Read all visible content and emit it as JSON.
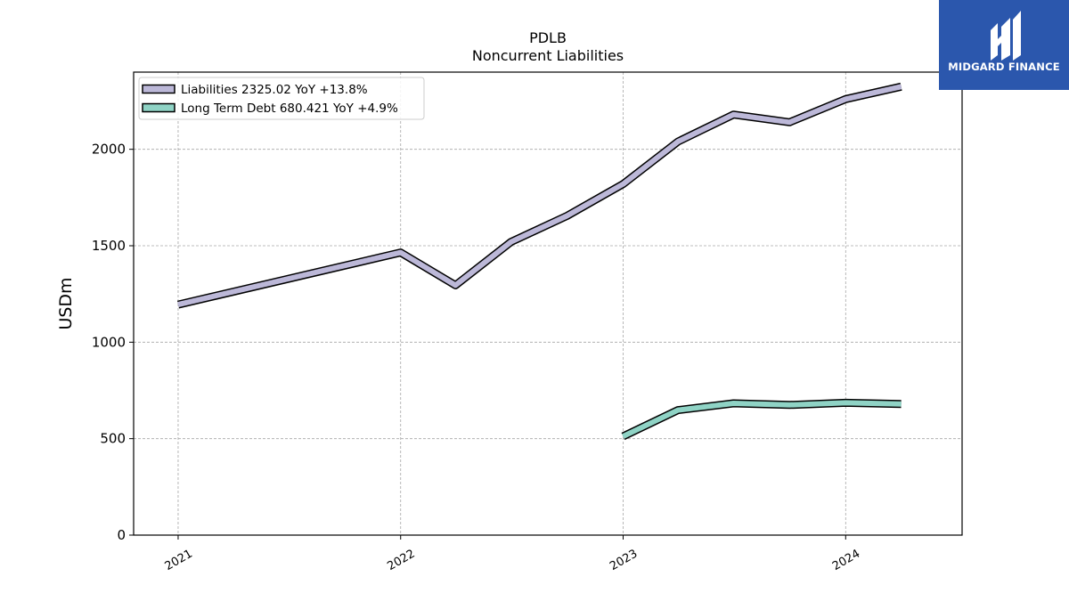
{
  "brand": {
    "name": "MIDGARD FINANCE",
    "color": "#2b57ad",
    "icon": "midgard-logo-icon"
  },
  "chart_data": {
    "type": "line",
    "title": "PDLB",
    "subtitle": "Noncurrent  Liabilities",
    "ylabel": "USDm",
    "xlabel": "",
    "ylim": [
      0,
      2400
    ],
    "yticks": [
      0,
      500,
      1000,
      1500,
      2000
    ],
    "xticks": [
      "2021",
      "2022",
      "2023",
      "2024"
    ],
    "grid": true,
    "legend_position": "top-left",
    "series": [
      {
        "name": "Liabilities",
        "legend_label": "Liabilities  2325.02 YoY +13.8%",
        "color": "#bcb8d8",
        "points": [
          [
            "2021-01-01",
            1195
          ],
          [
            "2022-01-01",
            1465
          ],
          [
            "2022-04-01",
            1295
          ],
          [
            "2022-07-01",
            1520
          ],
          [
            "2022-10-01",
            1655
          ],
          [
            "2023-01-01",
            1820
          ],
          [
            "2023-04-01",
            2040
          ],
          [
            "2023-07-01",
            2180
          ],
          [
            "2023-10-01",
            2140
          ],
          [
            "2024-01-01",
            2260
          ],
          [
            "2024-04-01",
            2325
          ]
        ]
      },
      {
        "name": "Long Term Debt",
        "legend_label": "Long Term Debt  680.421 YoY +4.9%",
        "color": "#8fd3c5",
        "points": [
          [
            "2023-01-01",
            512
          ],
          [
            "2023-04-01",
            648
          ],
          [
            "2023-07-01",
            683
          ],
          [
            "2023-10-01",
            675
          ],
          [
            "2024-01-01",
            686
          ],
          [
            "2024-04-01",
            680
          ]
        ]
      }
    ]
  }
}
